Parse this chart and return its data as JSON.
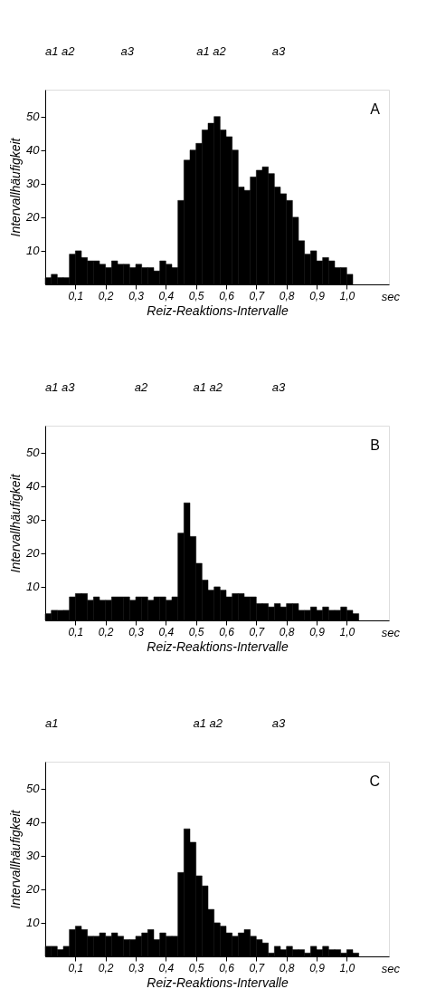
{
  "chart_data": [
    {
      "type": "histogram",
      "title": "A",
      "xlabel": "Reiz-Reaktions-Intervalle",
      "ylabel": "Intervallhäufigkeit",
      "color": "#000000",
      "grid": false,
      "bins": [
        0,
        0.02,
        0.04,
        0.06,
        0.08,
        0.1,
        0.12,
        0.14,
        0.16,
        0.18,
        0.2,
        0.22,
        0.24,
        0.26,
        0.28,
        0.3,
        0.32,
        0.34,
        0.36,
        0.38,
        0.4,
        0.42,
        0.44,
        0.46,
        0.48,
        0.5,
        0.52,
        0.54,
        0.56,
        0.58,
        0.6,
        0.62,
        0.64,
        0.66,
        0.68,
        0.7,
        0.72,
        0.74,
        0.76,
        0.78,
        0.8,
        0.82,
        0.84,
        0.86,
        0.88,
        0.9,
        0.92,
        0.94,
        0.96,
        0.98,
        1.0,
        1.02
      ],
      "values": [
        2,
        3,
        2,
        2,
        9,
        10,
        8,
        7,
        7,
        6,
        5,
        7,
        6,
        6,
        5,
        6,
        5,
        5,
        4,
        7,
        6,
        5,
        25,
        37,
        40,
        42,
        46,
        48,
        50,
        46,
        44,
        40,
        29,
        28,
        32,
        34,
        35,
        33,
        29,
        27,
        25,
        20,
        13,
        9,
        10,
        7,
        8,
        7,
        5,
        5,
        3
      ],
      "xlim": [
        0,
        1.14
      ],
      "ylim": [
        0,
        58
      ],
      "xticks": [
        {
          "value": 0.1,
          "label": "0,1"
        },
        {
          "value": 0.2,
          "label": "0,2"
        },
        {
          "value": 0.3,
          "label": "0,3"
        },
        {
          "value": 0.4,
          "label": "0,4"
        },
        {
          "value": 0.5,
          "label": "0,5"
        },
        {
          "value": 0.6,
          "label": "0,6"
        },
        {
          "value": 0.7,
          "label": "0,7"
        },
        {
          "value": 0.8,
          "label": "0,8"
        },
        {
          "value": 0.9,
          "label": "0,9"
        },
        {
          "value": 1.0,
          "label": "1,0"
        }
      ],
      "yticks": [
        10,
        20,
        30,
        40,
        50
      ],
      "annotations": [
        "a1 a2",
        "a3",
        "a1 a2",
        "a3",
        "sec"
      ]
    },
    {
      "type": "histogram",
      "title": "B",
      "xlabel": "Reiz-Reaktions-Intervalle",
      "ylabel": "Intervallhäufigkeit",
      "color": "#000000",
      "grid": false,
      "bins": [
        0,
        0.02,
        0.04,
        0.06,
        0.08,
        0.1,
        0.12,
        0.14,
        0.16,
        0.18,
        0.2,
        0.22,
        0.24,
        0.26,
        0.28,
        0.3,
        0.32,
        0.34,
        0.36,
        0.38,
        0.4,
        0.42,
        0.44,
        0.46,
        0.48,
        0.5,
        0.52,
        0.54,
        0.56,
        0.58,
        0.6,
        0.62,
        0.64,
        0.66,
        0.68,
        0.7,
        0.72,
        0.74,
        0.76,
        0.78,
        0.8,
        0.82,
        0.84,
        0.86,
        0.88,
        0.9,
        0.92,
        0.94,
        0.96,
        0.98,
        1.0,
        1.02,
        1.04
      ],
      "values": [
        2,
        3,
        3,
        3,
        7,
        8,
        8,
        6,
        7,
        6,
        6,
        7,
        7,
        7,
        6,
        7,
        7,
        6,
        7,
        7,
        6,
        7,
        26,
        35,
        25,
        17,
        12,
        9,
        10,
        9,
        7,
        8,
        8,
        7,
        7,
        5,
        5,
        4,
        5,
        4,
        5,
        5,
        3,
        3,
        4,
        3,
        4,
        3,
        3,
        4,
        3,
        2
      ],
      "xlim": [
        0,
        1.14
      ],
      "ylim": [
        0,
        58
      ],
      "xticks": [
        {
          "value": 0.1,
          "label": "0,1"
        },
        {
          "value": 0.2,
          "label": "0,2"
        },
        {
          "value": 0.3,
          "label": "0,3"
        },
        {
          "value": 0.4,
          "label": "0,4"
        },
        {
          "value": 0.5,
          "label": "0,5"
        },
        {
          "value": 0.6,
          "label": "0,6"
        },
        {
          "value": 0.7,
          "label": "0,7"
        },
        {
          "value": 0.8,
          "label": "0,8"
        },
        {
          "value": 0.9,
          "label": "0,9"
        },
        {
          "value": 1.0,
          "label": "1,0"
        }
      ],
      "yticks": [
        10,
        20,
        30,
        40,
        50
      ],
      "annotations": [
        "a1 a3",
        "a2",
        "a1 a2",
        "a3",
        "sec"
      ]
    },
    {
      "type": "histogram",
      "title": "C",
      "xlabel": "Reiz-Reaktions-Intervalle",
      "ylabel": "Intervallhäufigkeit",
      "color": "#000000",
      "grid": false,
      "bins": [
        0,
        0.02,
        0.04,
        0.06,
        0.08,
        0.1,
        0.12,
        0.14,
        0.16,
        0.18,
        0.2,
        0.22,
        0.24,
        0.26,
        0.28,
        0.3,
        0.32,
        0.34,
        0.36,
        0.38,
        0.4,
        0.42,
        0.44,
        0.46,
        0.48,
        0.5,
        0.52,
        0.54,
        0.56,
        0.58,
        0.6,
        0.62,
        0.64,
        0.66,
        0.68,
        0.7,
        0.72,
        0.74,
        0.76,
        0.78,
        0.8,
        0.82,
        0.84,
        0.86,
        0.88,
        0.9,
        0.92,
        0.94,
        0.96,
        0.98,
        1.0,
        1.02,
        1.04
      ],
      "values": [
        3,
        3,
        2,
        3,
        8,
        9,
        8,
        6,
        6,
        7,
        6,
        7,
        6,
        5,
        5,
        6,
        7,
        8,
        5,
        7,
        6,
        6,
        25,
        38,
        34,
        24,
        21,
        14,
        10,
        9,
        7,
        6,
        7,
        8,
        6,
        5,
        4,
        1,
        3,
        2,
        3,
        2,
        2,
        1,
        3,
        2,
        3,
        2,
        2,
        1,
        2,
        1
      ],
      "xlim": [
        0,
        1.14
      ],
      "ylim": [
        0,
        58
      ],
      "xticks": [
        {
          "value": 0.1,
          "label": "0,1"
        },
        {
          "value": 0.2,
          "label": "0,2"
        },
        {
          "value": 0.3,
          "label": "0,3"
        },
        {
          "value": 0.4,
          "label": "0,4"
        },
        {
          "value": 0.5,
          "label": "0,5"
        },
        {
          "value": 0.6,
          "label": "0,6"
        },
        {
          "value": 0.7,
          "label": "0,7"
        },
        {
          "value": 0.8,
          "label": "0,8"
        },
        {
          "value": 0.9,
          "label": "0,9"
        },
        {
          "value": 1.0,
          "label": "1,0"
        }
      ],
      "yticks": [
        10,
        20,
        30,
        40,
        50
      ],
      "annotations": [
        "a1",
        "a1 a2",
        "a3",
        "sec"
      ]
    }
  ]
}
